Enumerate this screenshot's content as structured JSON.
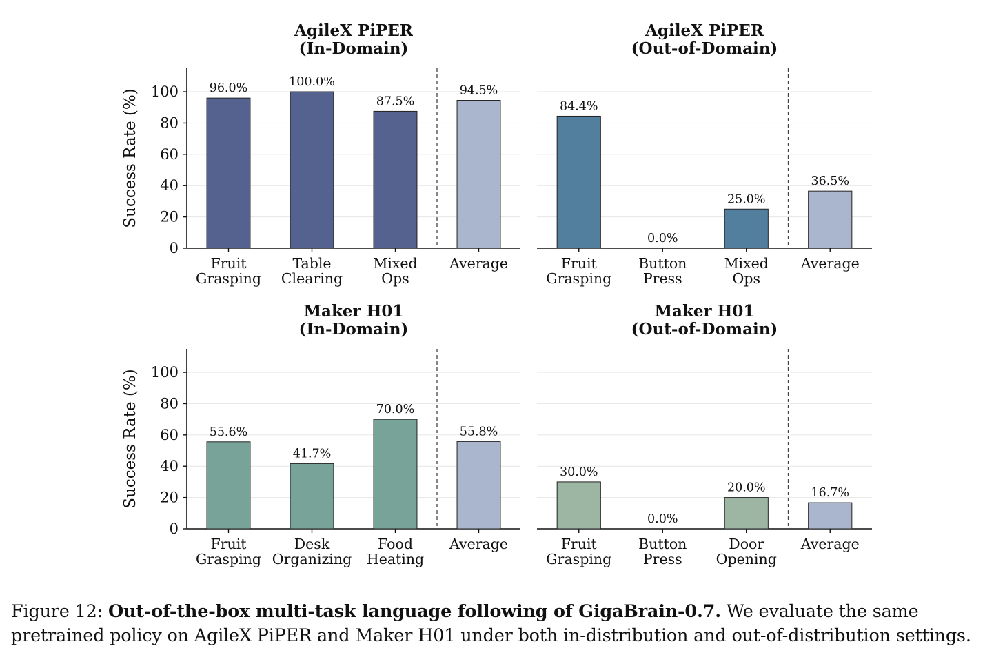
{
  "figure": {
    "caption_label": "Figure 12:",
    "caption_title": "Out-of-the-box multi-task language following of GigaBrain-0.7.",
    "caption_text": "We evaluate the same pretrained policy on AgileX PiPER and Maker H01 under both in-distribution and out-of-distribution settings."
  },
  "chart_data": [
    {
      "type": "bar",
      "title": "AgileX PiPER\n(In-Domain)",
      "ylabel": "Success Rate (%)",
      "xlabel": "",
      "ylim": [
        0,
        115
      ],
      "yticks": [
        0,
        20,
        40,
        60,
        80,
        100
      ],
      "grid": true,
      "categories": [
        "Fruit\nGrasping",
        "Table\nClearing",
        "Mixed\nOps",
        "Average"
      ],
      "values": [
        96.0,
        100.0,
        87.5,
        94.5
      ],
      "data_labels": [
        "96.0%",
        "100.0%",
        "87.5%",
        "94.5%"
      ],
      "colors": [
        "#55618f",
        "#55618f",
        "#55618f",
        "#aab6cd"
      ]
    },
    {
      "type": "bar",
      "title": "AgileX PiPER\n(Out-of-Domain)",
      "ylabel": "",
      "xlabel": "",
      "ylim": [
        0,
        115
      ],
      "yticks": [
        0,
        20,
        40,
        60,
        80,
        100
      ],
      "grid": true,
      "categories": [
        "Fruit\nGrasping",
        "Button\nPress",
        "Mixed\nOps",
        "Average"
      ],
      "values": [
        84.4,
        0.0,
        25.0,
        36.5
      ],
      "data_labels": [
        "84.4%",
        "0.0%",
        "25.0%",
        "36.5%"
      ],
      "colors": [
        "#537f9f",
        "#537f9f",
        "#537f9f",
        "#aab6cd"
      ]
    },
    {
      "type": "bar",
      "title": "Maker H01\n(In-Domain)",
      "ylabel": "Success Rate (%)",
      "xlabel": "",
      "ylim": [
        0,
        115
      ],
      "yticks": [
        0,
        20,
        40,
        60,
        80,
        100
      ],
      "grid": true,
      "categories": [
        "Fruit\nGrasping",
        "Desk\nOrganizing",
        "Food\nHeating",
        "Average"
      ],
      "values": [
        55.6,
        41.7,
        70.0,
        55.8
      ],
      "data_labels": [
        "55.6%",
        "41.7%",
        "70.0%",
        "55.8%"
      ],
      "colors": [
        "#78a398",
        "#78a398",
        "#78a398",
        "#aab6cd"
      ]
    },
    {
      "type": "bar",
      "title": "Maker H01\n(Out-of-Domain)",
      "ylabel": "",
      "xlabel": "",
      "ylim": [
        0,
        115
      ],
      "yticks": [
        0,
        20,
        40,
        60,
        80,
        100
      ],
      "grid": true,
      "categories": [
        "Fruit\nGrasping",
        "Button\nPress",
        "Door\nOpening",
        "Average"
      ],
      "values": [
        30.0,
        0.0,
        20.0,
        16.7
      ],
      "data_labels": [
        "30.0%",
        "0.0%",
        "20.0%",
        "16.7%"
      ],
      "colors": [
        "#9db6a4",
        "#9db6a4",
        "#9db6a4",
        "#aab6cd"
      ]
    }
  ]
}
